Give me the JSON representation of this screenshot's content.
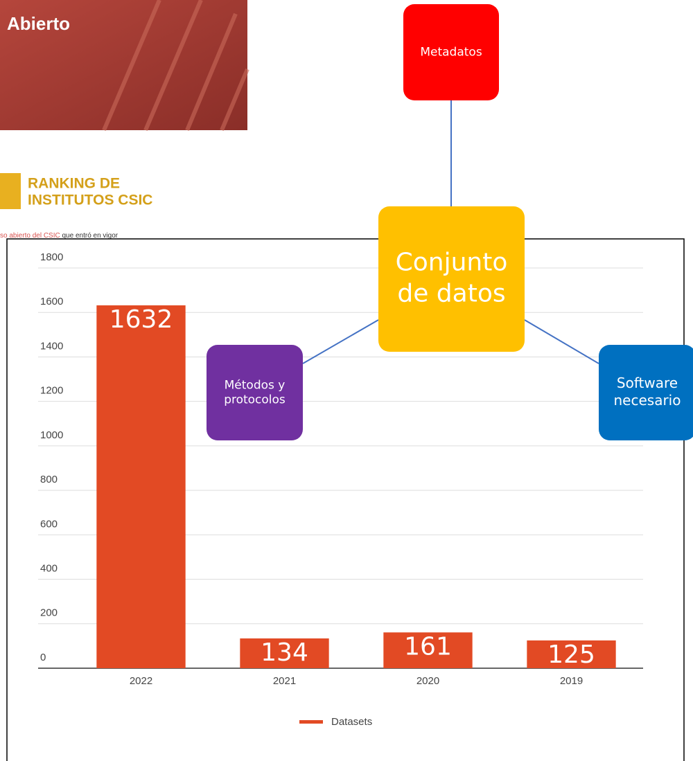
{
  "chart_data": {
    "type": "bar",
    "categories": [
      "2022",
      "2021",
      "2020",
      "2019"
    ],
    "series": [
      {
        "name": "Datasets",
        "color": "#e24a24",
        "values": [
          1632,
          134,
          161,
          125
        ]
      }
    ],
    "ylim": [
      0,
      1800
    ],
    "yticks": [
      0,
      200,
      400,
      600,
      800,
      1000,
      1200,
      1400,
      1600,
      1800
    ],
    "grid": true,
    "legend": "bottom",
    "data_labels": true
  },
  "banner": {
    "title": "Abierto"
  },
  "logo": {
    "lines": [
      "RANKING DE",
      "INSTITUTOS CSIC"
    ]
  },
  "page_text": {
    "link": "so abierto del CSIC",
    "rest": " que entró en vigor"
  },
  "diagram": {
    "nodes": [
      {
        "label": [
          "Metadatos"
        ],
        "color": "#ff0000"
      },
      {
        "label": [
          "Conjunto",
          "de datos"
        ],
        "color": "#ffc000"
      },
      {
        "label": [
          "Métodos y",
          "protocolos"
        ],
        "color": "#7030a0"
      },
      {
        "label": [
          "Software",
          "necesario"
        ],
        "color": "#0070c0"
      }
    ]
  }
}
